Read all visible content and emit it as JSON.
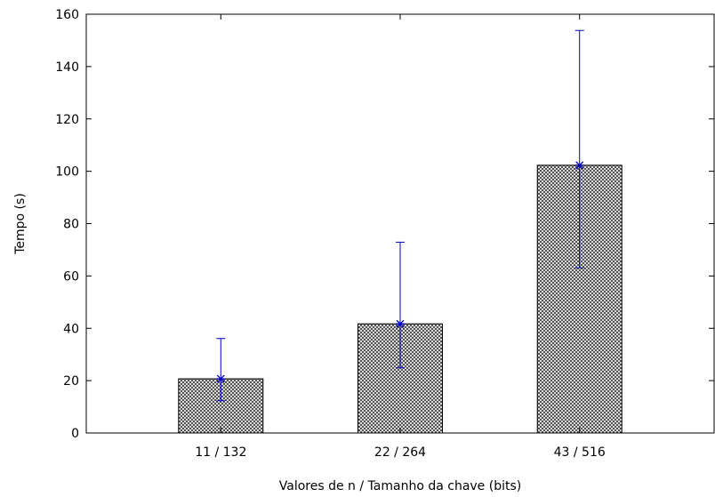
{
  "chart_data": {
    "type": "bar",
    "title": "",
    "xlabel": "Valores de n / Tamanho da chave (bits)",
    "ylabel": "Tempo (s)",
    "categories": [
      "11 / 132",
      "22 / 264",
      "43 / 516"
    ],
    "values": [
      20.7,
      41.7,
      102.3
    ],
    "error_bars": {
      "lower": [
        12.3,
        24.9,
        63.1
      ],
      "upper": [
        36.1,
        72.9,
        153.8
      ]
    },
    "ylim": [
      0,
      160
    ],
    "yticks": [
      0,
      20,
      40,
      60,
      80,
      100,
      120,
      140,
      160
    ],
    "grid": false,
    "legend": "none",
    "colors": {
      "bar_fill": "#888888",
      "bar_edge": "#000000",
      "error_bar": "#0000cc",
      "axis": "#000000"
    }
  }
}
